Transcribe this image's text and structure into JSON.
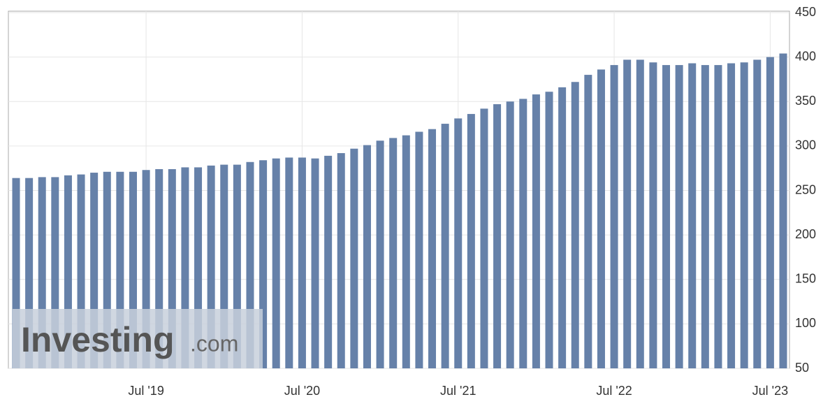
{
  "chart_data": {
    "type": "bar",
    "categories": [
      null,
      null,
      null,
      null,
      null,
      null,
      null,
      null,
      null,
      null,
      "Jul '19",
      null,
      null,
      null,
      null,
      null,
      null,
      null,
      null,
      null,
      null,
      null,
      "Jul '20",
      null,
      null,
      null,
      null,
      null,
      null,
      null,
      null,
      null,
      null,
      null,
      "Jul '21",
      null,
      null,
      null,
      null,
      null,
      null,
      null,
      null,
      null,
      null,
      null,
      "Jul '22",
      null,
      null,
      null,
      null,
      null,
      null,
      null,
      null,
      null,
      null,
      null,
      "Jul '23",
      null
    ],
    "values": [
      264,
      264,
      265,
      265,
      267,
      268,
      270,
      271,
      271,
      271,
      273,
      274,
      274,
      276,
      276,
      278,
      279,
      279,
      282,
      284,
      286,
      287,
      287,
      286,
      289,
      292,
      297,
      301,
      306,
      309,
      312,
      316,
      319,
      325,
      331,
      336,
      342,
      347,
      350,
      353,
      358,
      361,
      366,
      372,
      380,
      386,
      391,
      397,
      397,
      394,
      391,
      391,
      393,
      391,
      391,
      393,
      394,
      397,
      400,
      404
    ],
    "color": "#6681a9",
    "ylim": [
      50,
      450
    ],
    "yticks": [
      50,
      100,
      150,
      200,
      250,
      300,
      350,
      400,
      450
    ],
    "grid": true,
    "watermark": {
      "brand": "Investing",
      "suffix": ".com"
    }
  }
}
